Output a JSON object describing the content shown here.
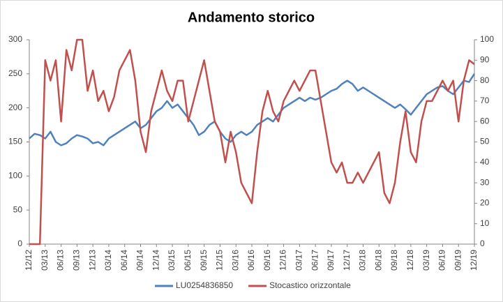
{
  "chart_data": {
    "type": "line",
    "title": "Andamento storico",
    "categories": [
      "12/12",
      null,
      null,
      "03/13",
      null,
      null,
      "06/13",
      null,
      null,
      "09/13",
      null,
      null,
      "12/13",
      null,
      null,
      "03/14",
      null,
      null,
      "06/14",
      null,
      null,
      "09/14",
      null,
      null,
      "12/14",
      null,
      null,
      "03/15",
      null,
      null,
      "06/15",
      null,
      null,
      "09/15",
      null,
      null,
      "12/15",
      null,
      null,
      "03/16",
      null,
      null,
      "06/16",
      null,
      null,
      "09/16",
      null,
      null,
      "12/16",
      null,
      null,
      "03/17",
      null,
      null,
      "06/17",
      null,
      null,
      "09/17",
      null,
      null,
      "12/17",
      null,
      null,
      "03/18",
      null,
      null,
      "06/18",
      null,
      null,
      "09/18",
      null,
      null,
      "12/18",
      null,
      null,
      "03/19",
      null,
      null,
      "06/19",
      null,
      null,
      "09/19",
      null,
      null,
      "12/19"
    ],
    "series": [
      {
        "name": "LU0254836850",
        "color": "#4f81bd",
        "axis": "y",
        "values": [
          155,
          162,
          160,
          155,
          165,
          150,
          145,
          148,
          155,
          160,
          158,
          155,
          148,
          150,
          145,
          155,
          160,
          165,
          170,
          175,
          180,
          170,
          175,
          185,
          195,
          200,
          210,
          200,
          205,
          195,
          185,
          175,
          160,
          165,
          175,
          180,
          165,
          155,
          150,
          160,
          165,
          160,
          165,
          175,
          180,
          185,
          180,
          190,
          200,
          205,
          210,
          215,
          210,
          215,
          212,
          215,
          220,
          225,
          228,
          235,
          240,
          235,
          225,
          230,
          225,
          220,
          215,
          210,
          205,
          200,
          205,
          198,
          190,
          200,
          210,
          220,
          225,
          230,
          232,
          225,
          220,
          230,
          240,
          238,
          250
        ]
      },
      {
        "name": "Stocastico orizzontale",
        "color": "#c0504d",
        "axis": "y2",
        "values": [
          0,
          0,
          0,
          90,
          80,
          90,
          60,
          95,
          85,
          100,
          100,
          75,
          85,
          70,
          75,
          65,
          72,
          85,
          90,
          95,
          80,
          55,
          45,
          65,
          75,
          85,
          75,
          70,
          80,
          80,
          60,
          70,
          80,
          90,
          75,
          60,
          55,
          40,
          55,
          45,
          30,
          25,
          20,
          45,
          65,
          75,
          65,
          60,
          70,
          75,
          80,
          75,
          80,
          85,
          85,
          70,
          55,
          40,
          35,
          40,
          30,
          30,
          35,
          30,
          35,
          40,
          45,
          25,
          20,
          30,
          50,
          65,
          45,
          40,
          60,
          70,
          70,
          75,
          80,
          75,
          80,
          60,
          80,
          90,
          88
        ]
      }
    ],
    "ylim": [
      0,
      300
    ],
    "yticks": [
      0,
      50,
      100,
      150,
      200,
      250,
      300
    ],
    "y2lim": [
      0,
      100
    ],
    "y2ticks": [
      0,
      10,
      20,
      30,
      40,
      50,
      60,
      70,
      80,
      90,
      100
    ],
    "grid": false,
    "legend": "bottom"
  }
}
